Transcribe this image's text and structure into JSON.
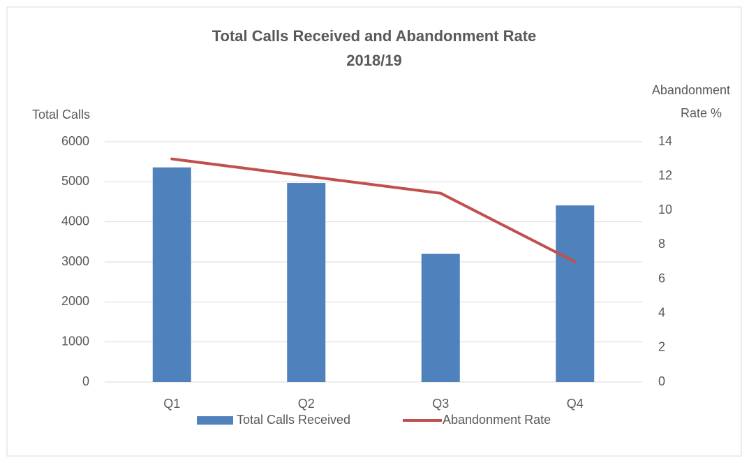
{
  "chart_data": {
    "type": "bar",
    "title": "Total Calls Received and Abandonment Rate",
    "subtitle": "2018/19",
    "y_label": "Total Calls",
    "y2_label": [
      "Abandonment",
      "Rate %"
    ],
    "categories": [
      "Q1",
      "Q2",
      "Q3",
      "Q4"
    ],
    "series": [
      {
        "name": "Total Calls Received",
        "type": "bar",
        "color": "#4f81bd",
        "values": [
          5360,
          4970,
          3200,
          4410
        ]
      },
      {
        "name": "Abandonment Rate",
        "type": "line",
        "axis": "y2",
        "color": "#c0504d",
        "values": [
          13,
          12,
          11,
          7
        ]
      }
    ],
    "ylim": [
      0,
      6000
    ],
    "yticks": [
      0,
      1000,
      2000,
      3000,
      4000,
      5000,
      6000
    ],
    "y2lim": [
      0,
      14
    ],
    "y2ticks": [
      0,
      2,
      4,
      6,
      8,
      10,
      12,
      14
    ],
    "grid": true,
    "legend": "bottom"
  }
}
